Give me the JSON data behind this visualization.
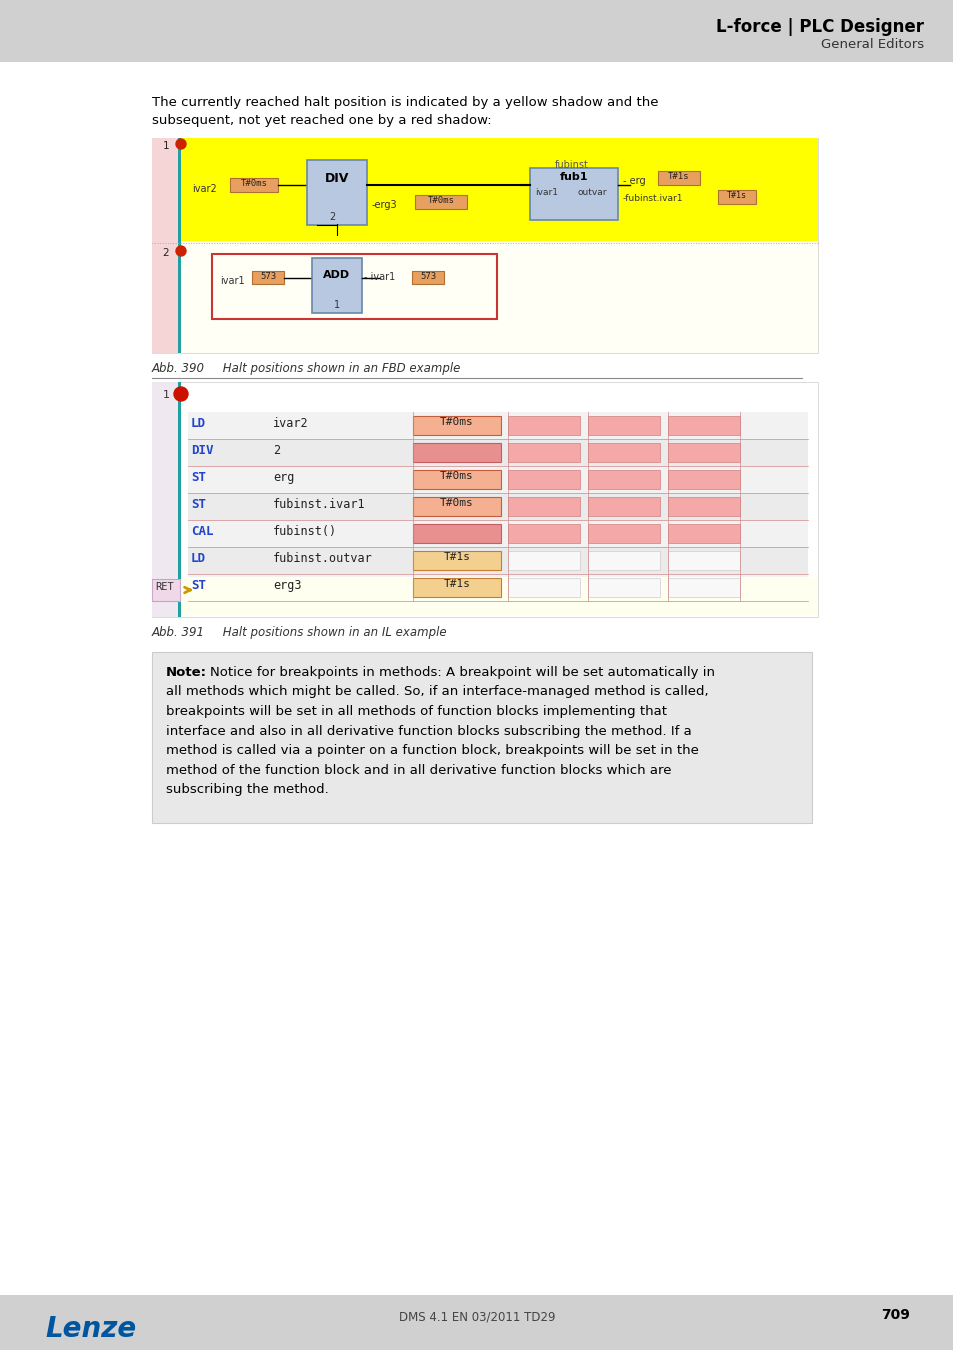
{
  "page_bg": "#e0e0e0",
  "content_bg": "#ffffff",
  "header_bg": "#d0d0d0",
  "title_text": "L-force | PLC Designer",
  "subtitle_text": "General Editors",
  "intro_line1": "The currently reached halt position is indicated by a yellow shadow and the",
  "intro_line2": "subsequent, not yet reached one by a red shadow:",
  "fig390_caption": "Abb. 390     Halt positions shown in an FBD example",
  "fig391_caption": "Abb. 391     Halt positions shown in an IL example",
  "footer_text": "DMS 4.1 EN 03/2011 TD29",
  "page_number": "709",
  "lenze_color": "#0055a0",
  "il_rows": [
    {
      "cmd": "LD",
      "operand": "ivar2",
      "val1": "T#0ms",
      "has_val1": true,
      "is_yellow": false
    },
    {
      "cmd": "DIV",
      "operand": "2",
      "val1": "",
      "has_val1": false,
      "is_yellow": false
    },
    {
      "cmd": "ST",
      "operand": "erg",
      "val1": "T#0ms",
      "has_val1": true,
      "is_yellow": false
    },
    {
      "cmd": "ST",
      "operand": "fubinst.ivar1",
      "val1": "T#0ms",
      "has_val1": true,
      "is_yellow": false
    },
    {
      "cmd": "CAL",
      "operand": "fubinst()",
      "val1": "",
      "has_val1": false,
      "is_yellow": false
    },
    {
      "cmd": "LD",
      "operand": "fubinst.outvar",
      "val1": "T#1s",
      "has_val1": true,
      "is_yellow": true
    },
    {
      "cmd": "ST",
      "operand": "erg3",
      "val1": "T#1s",
      "has_val1": true,
      "is_yellow": true
    }
  ],
  "note_lines": [
    "Notice for breakpoints in methods: A breakpoint will be set automatically in",
    "all methods which might be called. So, if an interface-managed method is called,",
    "breakpoints will be set in all methods of function blocks implementing that",
    "interface and also in all derivative function blocks subscribing the method. If a",
    "method is called via a pointer on a function block, breakpoints will be set in the",
    "method of the function block and in all derivative function blocks which are",
    "subscribing the method."
  ]
}
